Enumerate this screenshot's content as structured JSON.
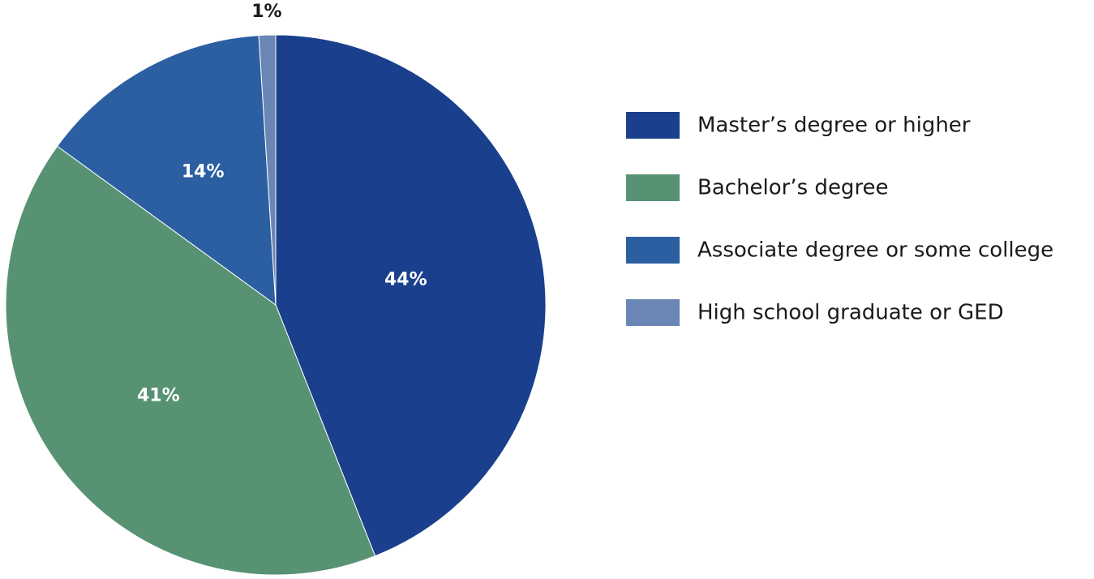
{
  "chart_data": {
    "type": "pie",
    "title": "",
    "categories": [
      "Master’s degree or higher",
      "Bachelor’s degree",
      "Associate degree or some college",
      "High school graduate or GED"
    ],
    "values": [
      44,
      41,
      14,
      1
    ],
    "data_labels": [
      "44%",
      "41%",
      "14%",
      "1%"
    ],
    "colors": [
      "#1a3f8c",
      "#579273",
      "#2b5fa1",
      "#6a86b4"
    ],
    "start_angle_deg": 0,
    "direction": "clockwise",
    "legend": {
      "position": "right",
      "items": [
        "Master’s degree or higher",
        "Bachelor’s degree",
        "Associate degree or some college",
        "High school graduate or GED"
      ]
    }
  }
}
